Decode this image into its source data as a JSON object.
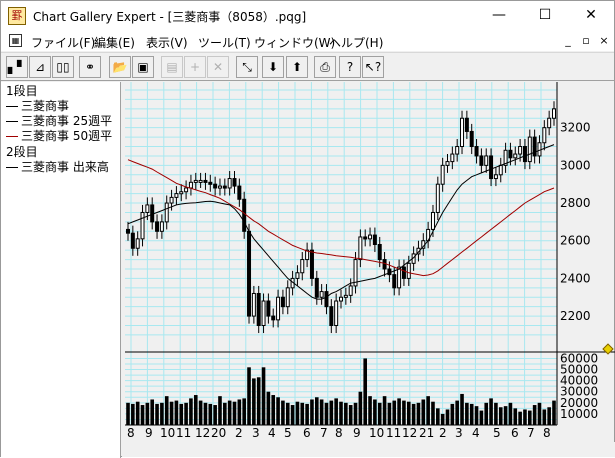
{
  "window": {
    "title": "Chart Gallery Expert - [三菱商事（8058）.pqg]",
    "buttons": {
      "minimize": "—",
      "maximize": "☐",
      "close": "✕"
    }
  },
  "menu": {
    "items": [
      "ファイル(F)",
      "編集(E)",
      "表示(V)",
      "ツール(T)",
      "ウィンドウ(W)",
      "ヘルプ(H)"
    ],
    "mdi_buttons": {
      "minimize": "_",
      "restore": "▫",
      "close": "×"
    }
  },
  "toolbar": {
    "buttons": [
      {
        "icon": "candlestick-icon",
        "glyph": "▖▘",
        "enabled": true
      },
      {
        "icon": "step-line-icon",
        "glyph": "⊿",
        "enabled": true
      },
      {
        "icon": "split-pane-icon",
        "glyph": "▯▯",
        "enabled": true
      },
      {
        "icon": "binoculars-icon",
        "glyph": "⚭",
        "enabled": true
      },
      {
        "icon": "open-folder-icon",
        "glyph": "📂",
        "enabled": true
      },
      {
        "icon": "save-icon",
        "glyph": "▣",
        "enabled": true
      },
      {
        "icon": "properties-icon",
        "glyph": "▤",
        "enabled": false
      },
      {
        "icon": "add-icon",
        "glyph": "+",
        "enabled": false
      },
      {
        "icon": "delete-icon",
        "glyph": "✕",
        "enabled": false
      },
      {
        "icon": "cursor-mode-icon",
        "glyph": "⤡",
        "enabled": true
      },
      {
        "icon": "arrow-down-icon",
        "glyph": "⬇",
        "enabled": true
      },
      {
        "icon": "arrow-up-icon",
        "glyph": "⬆",
        "enabled": true
      },
      {
        "icon": "print-icon",
        "glyph": "⎙",
        "enabled": true
      },
      {
        "icon": "help-icon",
        "glyph": "?",
        "enabled": true
      },
      {
        "icon": "context-help-icon",
        "glyph": "↖?",
        "enabled": true
      }
    ]
  },
  "legend": {
    "section1": "1段目",
    "section1_items": [
      {
        "label": "三菱商事",
        "color": "#000000"
      },
      {
        "label": "三菱商事 25週平",
        "color": "#000000"
      },
      {
        "label": "三菱商事 50週平",
        "color": "#a00000"
      }
    ],
    "section2": "2段目",
    "section2_items": [
      {
        "label": "三菱商事 出来高",
        "color": "#000000"
      }
    ]
  },
  "colors": {
    "grid": "#a8e8f0",
    "candle": "#000000",
    "ma25": "#000000",
    "ma50": "#a00000",
    "volume": "#000000"
  },
  "chart_data": {
    "type": "candlestick",
    "price_ylim": [
      2020,
      3400
    ],
    "price_ticks": [
      2200,
      2400,
      2600,
      2800,
      3000,
      3200
    ],
    "volume_ylim": [
      0,
      64000
    ],
    "volume_ticks": [
      10000,
      20000,
      30000,
      40000,
      50000,
      60000
    ],
    "x_tick_labels": [
      "8",
      "9",
      "10",
      "11",
      "12",
      "20",
      "2",
      "3",
      "4",
      "5",
      "6",
      "7",
      "8",
      "9",
      "10",
      "11",
      "12",
      "21",
      "2",
      "3",
      "4",
      "5",
      "6",
      "7",
      "8"
    ],
    "close": [
      2640,
      2560,
      2610,
      2750,
      2790,
      2700,
      2650,
      2700,
      2800,
      2830,
      2850,
      2860,
      2880,
      2910,
      2920,
      2920,
      2910,
      2900,
      2880,
      2890,
      2880,
      2930,
      2890,
      2820,
      2650,
      2200,
      2320,
      2150,
      2280,
      2200,
      2180,
      2300,
      2250,
      2350,
      2400,
      2430,
      2500,
      2550,
      2400,
      2300,
      2330,
      2250,
      2150,
      2280,
      2300,
      2310,
      2360,
      2500,
      2620,
      2610,
      2630,
      2580,
      2500,
      2450,
      2420,
      2350,
      2460,
      2400,
      2480,
      2530,
      2560,
      2600,
      2660,
      2750,
      2900,
      3000,
      3020,
      3060,
      3100,
      3250,
      3180,
      3100,
      3050,
      3000,
      3050,
      2930,
      2950,
      3000,
      3080,
      3040,
      3060,
      3100,
      3020,
      3150,
      3050,
      3120,
      3200,
      3250,
      3300
    ],
    "ma25": [
      2690,
      2700,
      2710,
      2720,
      2730,
      2740,
      2750,
      2760,
      2770,
      2780,
      2790,
      2795,
      2798,
      2800,
      2802,
      2805,
      2808,
      2810,
      2806,
      2800,
      2795,
      2790,
      2770,
      2740,
      2700,
      2650,
      2610,
      2580,
      2550,
      2520,
      2490,
      2460,
      2430,
      2400,
      2380,
      2360,
      2340,
      2320,
      2300,
      2290,
      2290,
      2300,
      2320,
      2330,
      2345,
      2360,
      2375,
      2380,
      2385,
      2390,
      2395,
      2400,
      2410,
      2420,
      2430,
      2440,
      2450,
      2470,
      2490,
      2510,
      2540,
      2570,
      2600,
      2650,
      2700,
      2750,
      2790,
      2830,
      2870,
      2900,
      2920,
      2940,
      2950,
      2960,
      2970,
      2980,
      2990,
      3000,
      3010,
      3020,
      3030,
      3040,
      3050,
      3060,
      3070,
      3080,
      3090,
      3100,
      3110
    ],
    "ma50": [
      3030,
      3020,
      3010,
      3000,
      2990,
      2980,
      2965,
      2950,
      2935,
      2920,
      2905,
      2895,
      2885,
      2878,
      2870,
      2862,
      2855,
      2845,
      2835,
      2825,
      2810,
      2795,
      2780,
      2765,
      2745,
      2725,
      2705,
      2690,
      2670,
      2650,
      2635,
      2620,
      2605,
      2590,
      2575,
      2565,
      2555,
      2545,
      2540,
      2535,
      2532,
      2528,
      2525,
      2520,
      2518,
      2515,
      2512,
      2508,
      2505,
      2500,
      2495,
      2490,
      2485,
      2480,
      2470,
      2460,
      2450,
      2440,
      2430,
      2425,
      2420,
      2415,
      2418,
      2425,
      2440,
      2460,
      2480,
      2500,
      2520,
      2540,
      2560,
      2580,
      2600,
      2620,
      2640,
      2660,
      2680,
      2700,
      2720,
      2740,
      2760,
      2780,
      2800,
      2815,
      2830,
      2845,
      2860,
      2870,
      2880
    ],
    "volume": [
      20000,
      19000,
      21000,
      18000,
      20000,
      23000,
      19000,
      20000,
      26000,
      21000,
      22000,
      19000,
      20000,
      24000,
      27000,
      22000,
      20000,
      19000,
      18000,
      26000,
      20000,
      22000,
      21000,
      23000,
      24000,
      52000,
      42000,
      43000,
      52000,
      30000,
      27000,
      25000,
      22000,
      20000,
      18000,
      21000,
      20000,
      19000,
      23000,
      25000,
      23000,
      20000,
      22000,
      24000,
      21000,
      20000,
      18000,
      20000,
      30000,
      60000,
      26000,
      23000,
      20000,
      26000,
      20000,
      22000,
      24000,
      22000,
      21000,
      19000,
      20000,
      23000,
      26000,
      21000,
      15000,
      10000,
      14000,
      19000,
      22000,
      28000,
      20000,
      19000,
      17000,
      13000,
      20000,
      24000,
      20000,
      16000,
      17000,
      20000,
      15000,
      12000,
      14000,
      13000,
      18000,
      20000,
      14000,
      16000,
      22000
    ]
  }
}
